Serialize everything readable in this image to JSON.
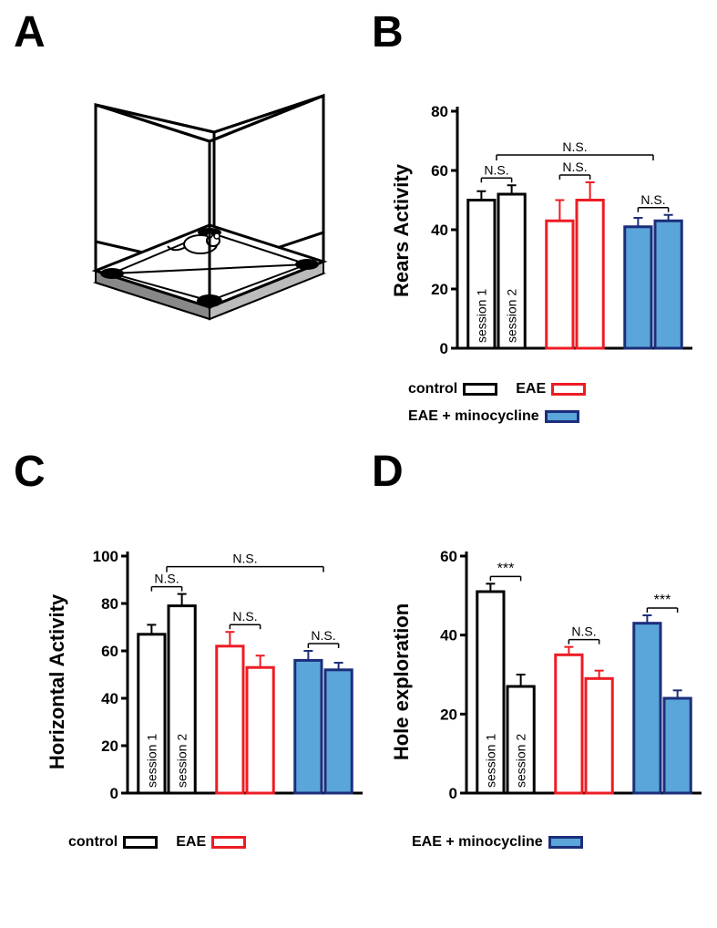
{
  "panels": {
    "A": "A",
    "B": "B",
    "C": "C",
    "D": "D"
  },
  "colors": {
    "black": "#000000",
    "red": "#ed1c24",
    "blue_fill": "#5aa5d9",
    "blue_stroke": "#1c2e7b",
    "axis": "#000000",
    "white": "#ffffff",
    "gray": "#cccccc"
  },
  "diagram": {
    "mouse_present": true,
    "floor_holes": 4
  },
  "chartB": {
    "type": "bar",
    "ylabel": "Rears Activity",
    "label_fontsize": 22,
    "ylim": [
      0,
      80
    ],
    "yticks": [
      0,
      20,
      40,
      60,
      80
    ],
    "bar_width": 0.78,
    "stroke_width": 3,
    "groups": [
      {
        "name": "control",
        "stroke": "#000000",
        "fill1": "#ffffff",
        "fill2": "#ffffff",
        "v1": 50,
        "e1": 3,
        "v2": 52,
        "e2": 3,
        "sig": "N.S."
      },
      {
        "name": "EAE",
        "stroke": "#ed1c24",
        "fill1": "#ffffff",
        "fill2": "#ffffff",
        "v1": 43,
        "e1": 7,
        "v2": 50,
        "e2": 6,
        "sig": "N.S."
      },
      {
        "name": "EAE+mino",
        "stroke": "#1c2e7b",
        "fill1": "#5aa5d9",
        "fill2": "#5aa5d9",
        "v1": 41,
        "e1": 3,
        "v2": 43,
        "e2": 2,
        "sig": "N.S."
      }
    ],
    "overall_sig": "N.S.",
    "session1_label": "session 1",
    "session2_label": "session 2"
  },
  "chartC": {
    "type": "bar",
    "ylabel": "Horizontal Activity",
    "label_fontsize": 22,
    "ylim": [
      0,
      100
    ],
    "yticks": [
      0,
      20,
      40,
      60,
      80,
      100
    ],
    "bar_width": 0.78,
    "stroke_width": 3,
    "groups": [
      {
        "name": "control",
        "stroke": "#000000",
        "fill1": "#ffffff",
        "fill2": "#ffffff",
        "v1": 67,
        "e1": 4,
        "v2": 79,
        "e2": 5,
        "sig": "N.S."
      },
      {
        "name": "EAE",
        "stroke": "#ed1c24",
        "fill1": "#ffffff",
        "fill2": "#ffffff",
        "v1": 62,
        "e1": 6,
        "v2": 53,
        "e2": 5,
        "sig": "N.S."
      },
      {
        "name": "EAE+mino",
        "stroke": "#1c2e7b",
        "fill1": "#5aa5d9",
        "fill2": "#5aa5d9",
        "v1": 56,
        "e1": 4,
        "v2": 52,
        "e2": 3,
        "sig": "N.S."
      }
    ],
    "overall_sig": "N.S.",
    "session1_label": "session 1",
    "session2_label": "session 2"
  },
  "chartD": {
    "type": "bar",
    "ylabel": "Hole exploration",
    "label_fontsize": 22,
    "ylim": [
      0,
      60
    ],
    "yticks": [
      0,
      20,
      40,
      60
    ],
    "bar_width": 0.78,
    "stroke_width": 3,
    "groups": [
      {
        "name": "control",
        "stroke": "#000000",
        "fill1": "#ffffff",
        "fill2": "#ffffff",
        "v1": 51,
        "e1": 2,
        "v2": 27,
        "e2": 3,
        "sig": "***"
      },
      {
        "name": "EAE",
        "stroke": "#ed1c24",
        "fill1": "#ffffff",
        "fill2": "#ffffff",
        "v1": 35,
        "e1": 2,
        "v2": 29,
        "e2": 2,
        "sig": "N.S."
      },
      {
        "name": "EAE+mino",
        "stroke": "#1c2e7b",
        "fill1": "#5aa5d9",
        "fill2": "#5aa5d9",
        "v1": 43,
        "e1": 2,
        "v2": 24,
        "e2": 2,
        "sig": "***"
      }
    ],
    "session1_label": "session 1",
    "session2_label": "session 2"
  },
  "legend": {
    "items": [
      {
        "label": "control",
        "stroke": "#000000",
        "fill": "#ffffff"
      },
      {
        "label": "EAE",
        "stroke": "#ed1c24",
        "fill": "#ffffff"
      },
      {
        "label": "EAE + minocycline",
        "stroke": "#1c2e7b",
        "fill": "#5aa5d9"
      }
    ]
  }
}
